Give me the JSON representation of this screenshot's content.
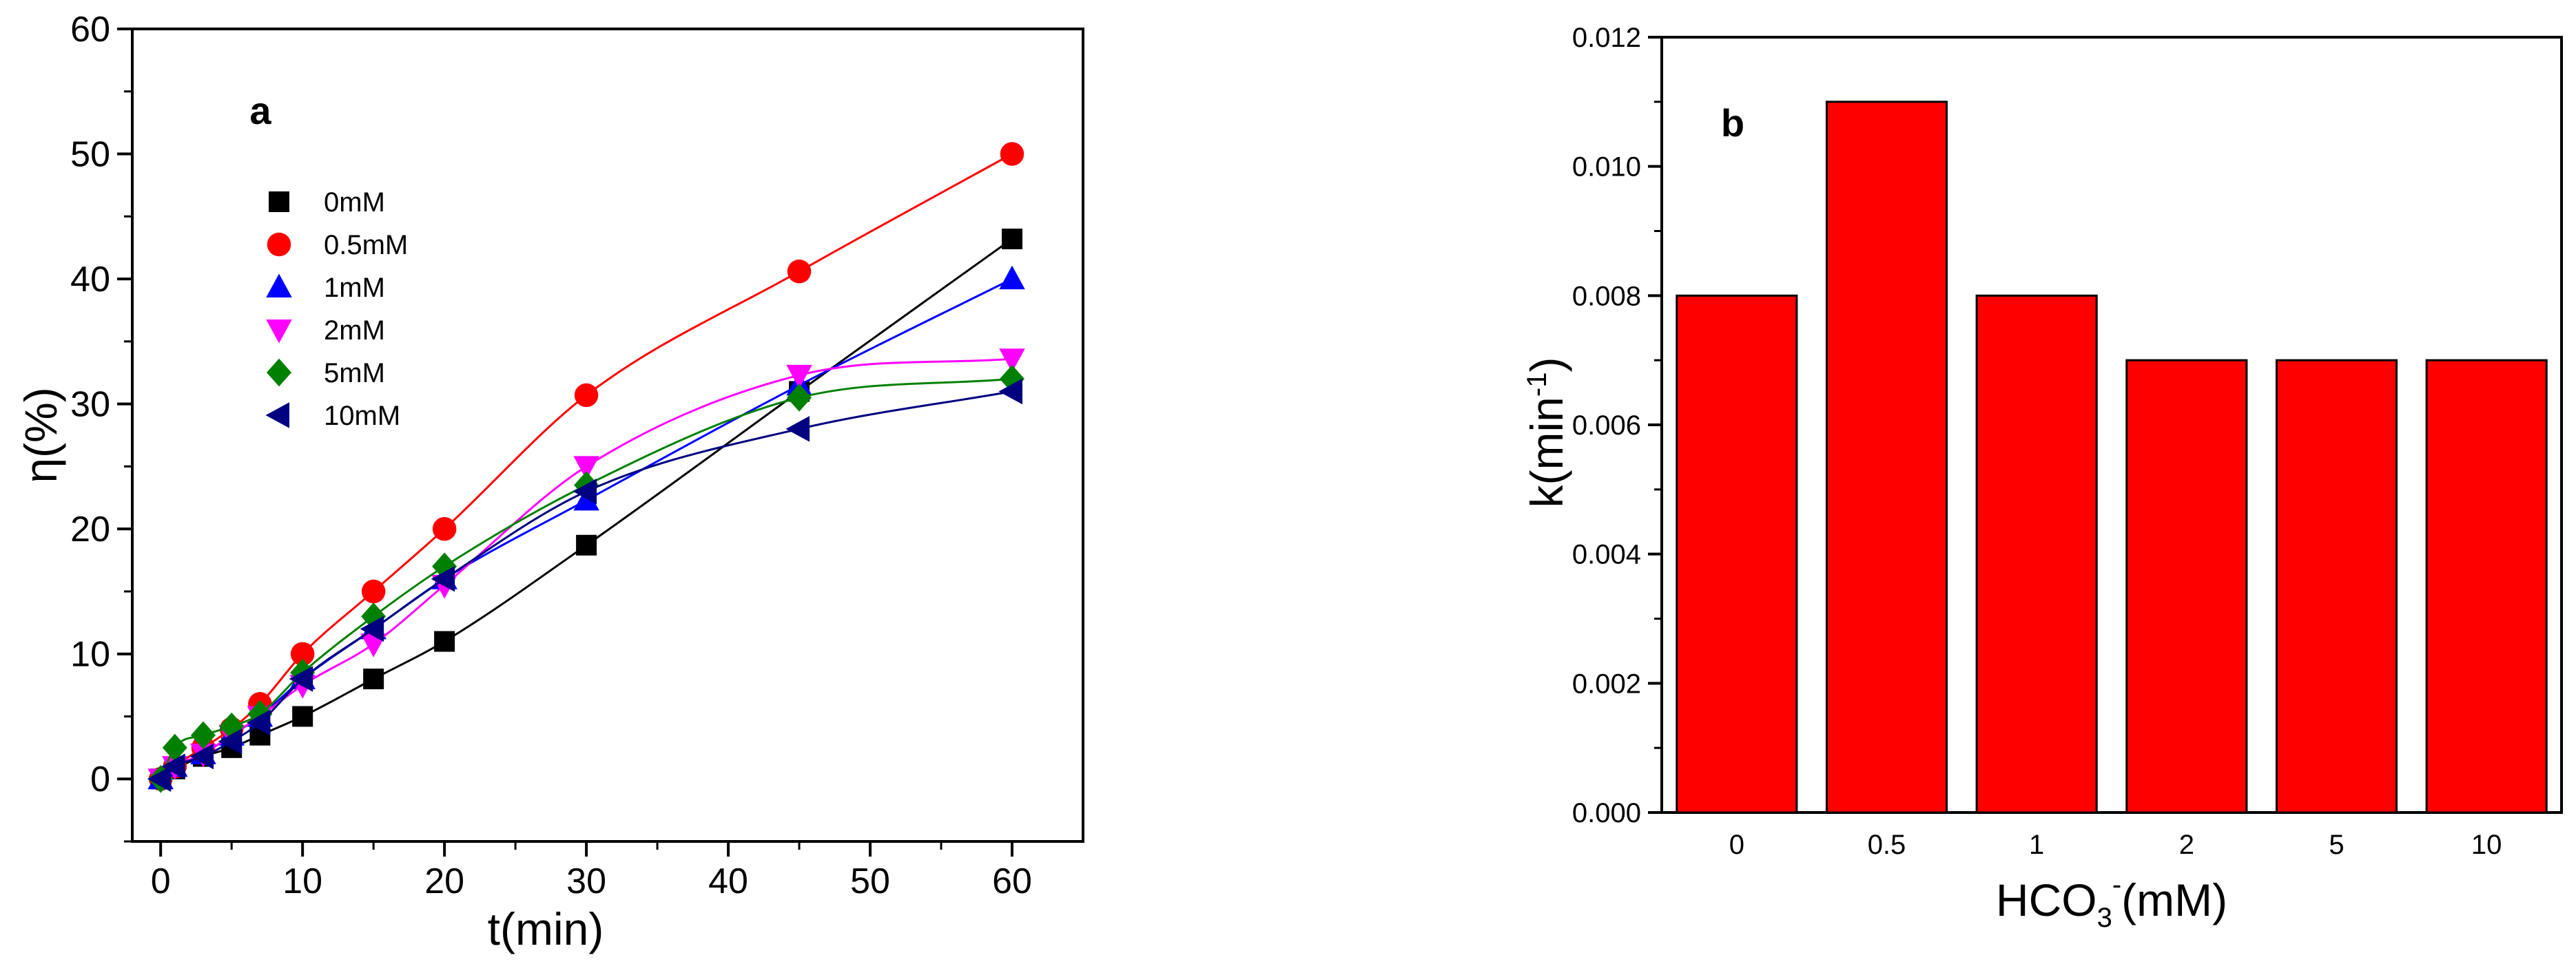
{
  "chart_data": [
    {
      "panel": "a",
      "type": "scatter",
      "panel_label": "a",
      "xlabel": "t(min)",
      "ylabel": "η(%)",
      "xlim": [
        -2,
        65
      ],
      "ylim": [
        -5,
        60
      ],
      "xticks": [
        "0",
        "10",
        "20",
        "30",
        "40",
        "50",
        "60"
      ],
      "yticks": [
        "0",
        "10",
        "20",
        "30",
        "40",
        "50",
        "60"
      ],
      "legend_position": "top-left",
      "series": [
        {
          "name": "0mM",
          "marker": "square",
          "color": "#000000",
          "x": [
            0,
            1,
            3,
            5,
            7,
            10,
            15,
            20,
            30,
            45,
            60
          ],
          "y": [
            0,
            0.8,
            1.8,
            2.5,
            3.5,
            5,
            8,
            11,
            18.7,
            31,
            43.2
          ]
        },
        {
          "name": "0.5mM",
          "marker": "circle",
          "color": "#ff0000",
          "x": [
            0,
            1,
            3,
            5,
            7,
            10,
            15,
            20,
            30,
            45,
            60
          ],
          "y": [
            0,
            1,
            2.5,
            4,
            6,
            10,
            15,
            20,
            30.7,
            40.6,
            50
          ]
        },
        {
          "name": "1mM",
          "marker": "triangle-up",
          "color": "#0000ff",
          "x": [
            0,
            1,
            3,
            5,
            7,
            10,
            15,
            20,
            30,
            45,
            60
          ],
          "y": [
            0,
            1,
            2,
            3.5,
            5,
            8,
            12,
            16,
            22.3,
            31.5,
            40
          ]
        },
        {
          "name": "2mM",
          "marker": "triangle-down",
          "color": "#ff00ff",
          "x": [
            0,
            1,
            3,
            5,
            7,
            10,
            15,
            20,
            30,
            45,
            60
          ],
          "y": [
            0,
            1,
            2,
            3.5,
            5,
            7.5,
            10.8,
            15.5,
            25,
            32.3,
            33.6
          ]
        },
        {
          "name": "5mM",
          "marker": "diamond",
          "color": "#008000",
          "x": [
            0,
            1,
            3,
            5,
            7,
            10,
            15,
            20,
            30,
            45,
            60
          ],
          "y": [
            0,
            2.5,
            3.5,
            4.2,
            5.2,
            8.5,
            13,
            17,
            23.5,
            30.5,
            32
          ]
        },
        {
          "name": "10mM",
          "marker": "triangle-left",
          "color": "#000080",
          "x": [
            0,
            1,
            3,
            5,
            7,
            10,
            15,
            20,
            30,
            45,
            60
          ],
          "y": [
            0,
            1,
            1.8,
            3,
            4.5,
            8,
            12,
            16,
            23,
            28,
            31
          ]
        }
      ]
    },
    {
      "panel": "b",
      "type": "bar",
      "panel_label": "b",
      "xlabel_main": "HCO",
      "xlabel_sub": "3",
      "xlabel_sup": "-",
      "xlabel_unit": "(mM)",
      "ylabel_main": "k(min",
      "ylabel_sup": "-1",
      "ylabel_close": ")",
      "categories": [
        "0",
        "0.5",
        "1",
        "2",
        "5",
        "10"
      ],
      "values": [
        0.008,
        0.011,
        0.008,
        0.007,
        0.007,
        0.007
      ],
      "ylim": [
        0,
        0.012
      ],
      "yticks": [
        "0.000",
        "0.002",
        "0.004",
        "0.006",
        "0.008",
        "0.010",
        "0.012"
      ],
      "bar_color": "#ff0000"
    }
  ]
}
